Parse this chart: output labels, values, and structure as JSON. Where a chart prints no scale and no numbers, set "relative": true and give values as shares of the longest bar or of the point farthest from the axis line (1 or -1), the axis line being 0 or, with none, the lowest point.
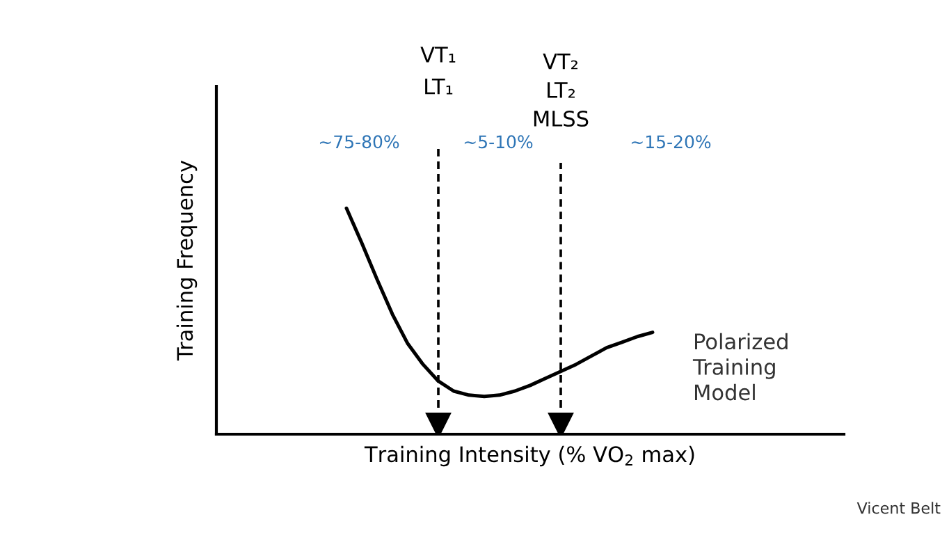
{
  "chart_data": {
    "type": "line",
    "relative": true,
    "xlabel": "Training Intensity (% VO$_{2}$ max)",
    "ylabel": "Training Frequency",
    "categories": [
      null,
      null,
      null,
      null,
      null,
      null,
      null,
      null,
      null,
      null,
      null,
      null,
      null,
      null,
      null,
      null,
      null,
      null,
      null,
      null,
      null,
      null,
      null,
      null,
      null,
      null,
      null,
      null,
      null,
      null,
      null,
      null,
      null,
      null,
      null,
      null,
      null,
      null,
      null,
      null,
      null
    ],
    "series": [
      {
        "color": "#000000",
        "values": [
          null,
          null,
          null,
          null,
          null,
          null,
          null,
          null,
          1,
          0.846,
          0.685,
          0.531,
          0.401,
          0.309,
          0.235,
          0.191,
          0.173,
          0.167,
          0.173,
          0.191,
          0.216,
          0.247,
          0.278,
          0.309,
          0.346,
          0.383,
          0.407,
          0.432,
          0.451,
          null,
          null,
          null,
          null,
          null,
          null,
          null,
          null,
          null,
          null,
          null,
          null
        ]
      }
    ],
    "annotations": [
      "VT₁\nLT₁",
      "VT₂\nLT₂\nMLSS",
      "~75-80%",
      "~5-10%",
      "~15-20%",
      "Polarized\nTraining\nModel",
      "Vicent Belt"
    ],
    "marker": "none",
    "line_style": "solid"
  }
}
